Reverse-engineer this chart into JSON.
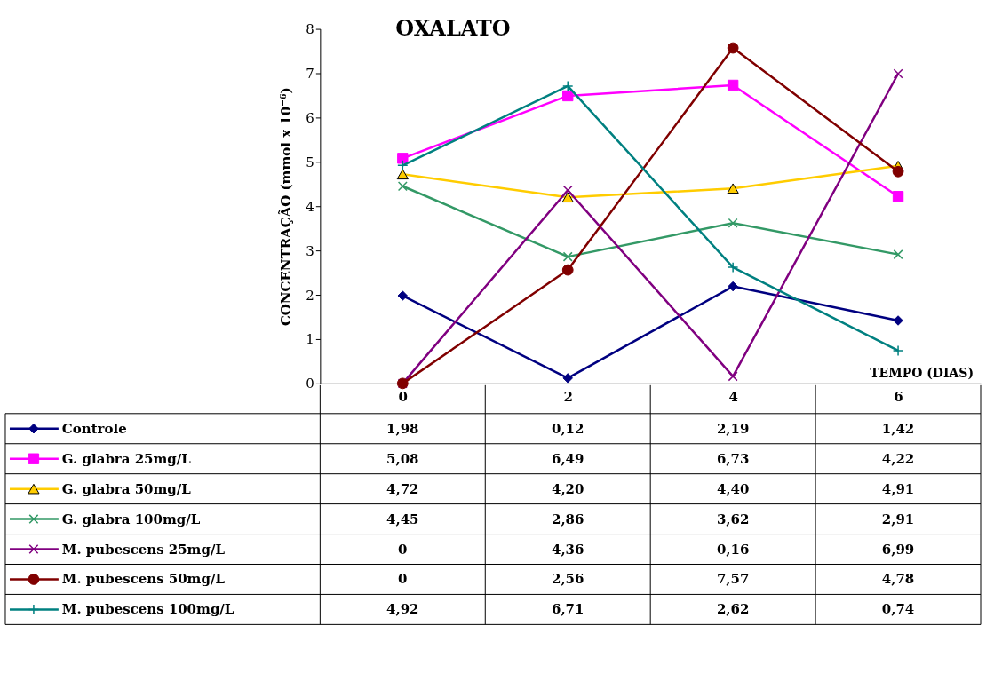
{
  "chart_data": {
    "type": "line",
    "title": "OXALATO",
    "xlabel": "TEMPO (DIAS)",
    "ylabel": "CONCENTRAÇÃO (mmol x 10⁻⁶)",
    "categories": [
      "0",
      "2",
      "4",
      "6"
    ],
    "legend": "bottom left",
    "ylim": [
      0,
      8
    ],
    "yticks": [
      0,
      1,
      2,
      3,
      4,
      5,
      6,
      7,
      8
    ],
    "grid": false,
    "series": [
      {
        "name": "Controle",
        "color": "#000080",
        "marker": "diamond",
        "values": [
          1.98,
          0.12,
          2.19,
          1.42
        ],
        "value_labels": [
          "1,98",
          "0,12",
          "2,19",
          "1,42"
        ]
      },
      {
        "name": "G. glabra 25mg/L",
        "color": "#ff00ff",
        "marker": "square",
        "values": [
          5.08,
          6.49,
          6.73,
          4.22
        ],
        "value_labels": [
          "5,08",
          "6,49",
          "6,73",
          "4,22"
        ]
      },
      {
        "name": "G. glabra 50mg/L",
        "color": "#ffcc00",
        "marker": "triangle",
        "values": [
          4.72,
          4.2,
          4.4,
          4.91
        ],
        "value_labels": [
          "4,72",
          "4,20",
          "4,40",
          "4,91"
        ]
      },
      {
        "name": "G. glabra 100mg/L",
        "color": "#339966",
        "marker": "cross",
        "values": [
          4.45,
          2.86,
          3.62,
          2.91
        ],
        "value_labels": [
          "4,45",
          "2,86",
          "3,62",
          "2,91"
        ]
      },
      {
        "name": "M. pubescens 25mg/L",
        "color": "#800080",
        "marker": "cross",
        "values": [
          0,
          4.36,
          0.16,
          6.99
        ],
        "value_labels": [
          "0",
          "4,36",
          "0,16",
          "6,99"
        ]
      },
      {
        "name": "M. pubescens 50mg/L",
        "color": "#800000",
        "marker": "circle",
        "values": [
          0,
          2.56,
          7.57,
          4.78
        ],
        "value_labels": [
          "0",
          "2,56",
          "7,57",
          "4,78"
        ]
      },
      {
        "name": "M. pubescens 100mg/L",
        "color": "#008080",
        "marker": "plus",
        "values": [
          4.92,
          6.71,
          2.62,
          0.74
        ],
        "value_labels": [
          "4,92",
          "6,71",
          "2,62",
          "0,74"
        ]
      }
    ]
  }
}
